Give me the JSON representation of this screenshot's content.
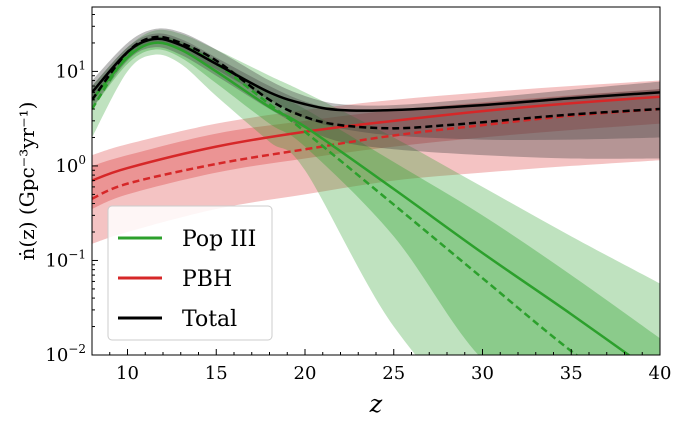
{
  "chart_data": {
    "type": "line",
    "xlabel": "z",
    "ylabel": "ṅ(z) (Gpc⁻³yr⁻¹)",
    "xlim": [
      8,
      40
    ],
    "ylim": [
      0.01,
      48
    ],
    "yscale": "log",
    "grid": false,
    "legend_placement": "lower-left",
    "x_ticks": [
      10,
      15,
      20,
      25,
      30,
      35,
      40
    ],
    "y_ticks": [
      {
        "value": 0.01,
        "label": "10",
        "exp": "−2"
      },
      {
        "value": 0.1,
        "label": "10",
        "exp": "−1"
      },
      {
        "value": 1,
        "label": "10",
        "exp": "0"
      },
      {
        "value": 10,
        "label": "10",
        "exp": "1"
      }
    ],
    "legend": [
      {
        "name": "Pop III",
        "color": "#2ca02c"
      },
      {
        "name": "PBH",
        "color": "#d62728"
      },
      {
        "name": "Total",
        "color": "#000000"
      }
    ],
    "bands": [
      {
        "series": "PBH",
        "level": "outer",
        "color": "#d62728",
        "opacity": 0.28,
        "z": [
          8,
          10,
          15,
          20,
          25,
          30,
          35,
          40
        ],
        "lower": [
          0.15,
          0.2,
          0.35,
          0.5,
          0.7,
          0.85,
          1.0,
          1.15
        ],
        "upper": [
          1.3,
          1.7,
          2.8,
          3.9,
          5.0,
          6.0,
          7.0,
          8.0
        ]
      },
      {
        "series": "PBH",
        "level": "inner",
        "color": "#d62728",
        "opacity": 0.3,
        "z": [
          8,
          10,
          15,
          20,
          25,
          30,
          35,
          40
        ],
        "lower": [
          0.35,
          0.5,
          0.85,
          1.2,
          1.6,
          2.0,
          2.4,
          2.8
        ],
        "upper": [
          1.0,
          1.3,
          2.2,
          3.0,
          3.9,
          4.7,
          5.6,
          6.5
        ]
      },
      {
        "series": "Pop III",
        "level": "outer",
        "color": "#2ca02c",
        "opacity": 0.3,
        "z": [
          8,
          10,
          11.5,
          13,
          15,
          18,
          20,
          25,
          30,
          35,
          40
        ],
        "lower": [
          2,
          10,
          15,
          12,
          5.5,
          1.8,
          0.9,
          0.02,
          0.0005,
          1e-05,
          3e-07
        ],
        "upper": [
          7,
          18,
          27,
          25,
          17,
          9,
          6,
          2.0,
          0.6,
          0.18,
          0.057
        ]
      },
      {
        "series": "Pop III",
        "level": "inner",
        "color": "#2ca02c",
        "opacity": 0.35,
        "z": [
          8,
          10,
          11.5,
          13,
          15,
          18,
          20,
          25,
          30,
          35,
          40
        ],
        "lower": [
          4,
          12,
          17,
          14,
          7.5,
          2.8,
          1.6,
          0.18,
          0.009,
          0.0006,
          4e-05
        ],
        "upper": [
          6,
          16,
          23,
          21,
          13,
          6,
          4.0,
          1.1,
          0.3,
          0.07,
          0.015
        ]
      },
      {
        "series": "Total",
        "level": "outer",
        "color": "#404040",
        "opacity": 0.35,
        "z": [
          8,
          10,
          11.5,
          13,
          15,
          18,
          20,
          22,
          25,
          30,
          35,
          40
        ],
        "lower": [
          4,
          13,
          18,
          15,
          9,
          4,
          2.5,
          1.8,
          1.5,
          1.3,
          1.2,
          1.2
        ],
        "upper": [
          8,
          20,
          28,
          26,
          17,
          8,
          5.5,
          4.5,
          4.4,
          5.2,
          6.4,
          7.8
        ]
      },
      {
        "series": "Total",
        "level": "inner",
        "color": "#404040",
        "opacity": 0.35,
        "z": [
          8,
          10,
          11.5,
          13,
          15,
          18,
          20,
          22,
          25,
          30,
          35,
          40
        ],
        "lower": [
          5,
          14,
          20,
          17,
          10.5,
          5,
          3.2,
          2.5,
          2.1,
          1.9,
          1.9,
          2.0
        ],
        "upper": [
          7,
          18,
          25,
          22,
          14,
          7,
          4.8,
          4.0,
          4.0,
          4.6,
          5.5,
          6.5
        ]
      }
    ],
    "series": [
      {
        "name": "PBH",
        "style": "solid",
        "color": "#d62728",
        "z": [
          8,
          10,
          15,
          20,
          25,
          30,
          35,
          40
        ],
        "values": [
          0.7,
          0.95,
          1.6,
          2.3,
          3.0,
          3.8,
          4.6,
          5.4
        ]
      },
      {
        "name": "PBH",
        "style": "dashed",
        "color": "#d62728",
        "z": [
          8,
          10,
          15,
          20,
          25,
          30,
          35,
          40
        ],
        "values": [
          0.45,
          0.65,
          1.05,
          1.5,
          2.1,
          2.7,
          3.4,
          4.0
        ]
      },
      {
        "name": "Pop III",
        "style": "solid",
        "color": "#2ca02c",
        "z": [
          8,
          10,
          11.5,
          13,
          15,
          18,
          20,
          25,
          30,
          35,
          40
        ],
        "values": [
          5,
          14,
          20,
          17,
          10,
          4.2,
          2.6,
          0.57,
          0.12,
          0.027,
          0.0058
        ]
      },
      {
        "name": "Pop III",
        "style": "dashed",
        "color": "#2ca02c",
        "z": [
          8,
          10,
          11.5,
          13,
          15,
          18,
          20,
          25,
          30,
          35,
          40
        ],
        "values": [
          4,
          15,
          22,
          19,
          12,
          4.5,
          2.3,
          0.39,
          0.065,
          0.011,
          0.0018
        ]
      },
      {
        "name": "Total",
        "style": "solid",
        "color": "#000000",
        "z": [
          8,
          10,
          11.5,
          13,
          15,
          18,
          20,
          22,
          25,
          30,
          35,
          40
        ],
        "values": [
          6,
          16,
          22,
          19,
          12,
          6,
          4.5,
          3.9,
          3.9,
          4.4,
          5.2,
          6.0
        ]
      },
      {
        "name": "Total",
        "style": "dashed",
        "color": "#000000",
        "z": [
          8,
          10,
          11.5,
          13,
          15,
          18,
          20,
          22,
          25,
          28,
          30,
          35,
          40
        ],
        "values": [
          5,
          16,
          23,
          20,
          13,
          5,
          3.3,
          2.7,
          2.5,
          2.7,
          2.9,
          3.5,
          4.0
        ]
      }
    ]
  }
}
